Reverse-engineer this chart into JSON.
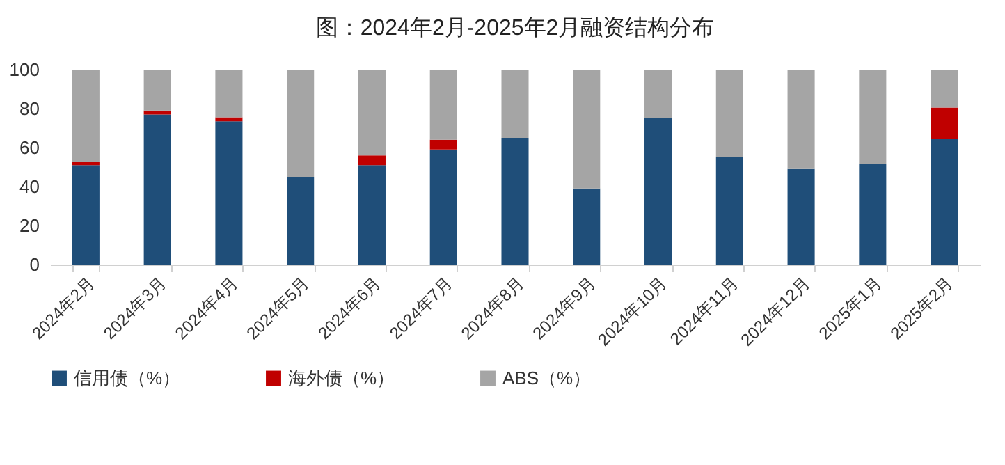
{
  "chart_data": {
    "type": "bar",
    "title": "图：2024年2月-2025年2月融资结构分布",
    "stacked": true,
    "categories": [
      "2024年2月",
      "2024年3月",
      "2024年4月",
      "2024年5月",
      "2024年6月",
      "2024年7月",
      "2024年8月",
      "2024年9月",
      "2024年10月",
      "2024年11月",
      "2024年12月",
      "2025年1月",
      "2025年2月"
    ],
    "series": [
      {
        "name": "信用债（%）",
        "color": "#1f4e79",
        "values": [
          51,
          77,
          73.5,
          45,
          51,
          59,
          65,
          39,
          75,
          55,
          49,
          51.5,
          64.5
        ]
      },
      {
        "name": "海外债（%）",
        "color": "#c00000",
        "values": [
          1.5,
          2,
          2,
          0,
          5,
          5,
          0,
          0,
          0,
          0,
          0,
          0,
          16
        ]
      },
      {
        "name": "ABS（%）",
        "color": "#a5a5a5",
        "values": [
          47.5,
          21,
          24.5,
          55,
          44,
          36,
          35,
          61,
          25,
          45,
          51,
          48.5,
          19.5
        ]
      }
    ],
    "ylim": [
      0,
      100
    ],
    "yticks": [
      0,
      20,
      40,
      60,
      80,
      100
    ],
    "grid": false,
    "legend": "bottom"
  }
}
